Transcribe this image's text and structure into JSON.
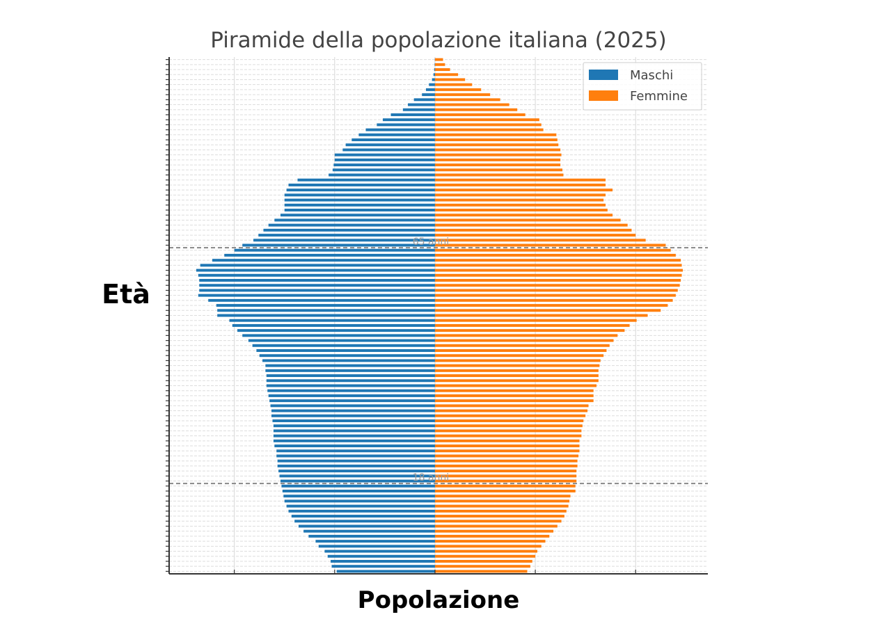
{
  "chart_data": {
    "type": "bar",
    "orientation": "horizontal-population-pyramid",
    "title": "Piramide della popolazione italiana (2025)",
    "xlabel": "Popolazione",
    "ylabel": "Età",
    "x_tick_labels_visible": false,
    "y_tick_labels_visible": false,
    "grid": true,
    "legend_position": "upper-right",
    "xlim": [
      -265000,
      272000
    ],
    "ylim": [
      -0.5,
      102.5
    ],
    "age_ticks": [
      0,
      102
    ],
    "series": [
      {
        "name": "Maschi",
        "color": "#1f77b4",
        "side": "left",
        "values": [
          98000,
          103000,
          104000,
          107000,
          110000,
          116000,
          119000,
          126000,
          131000,
          136000,
          140000,
          143000,
          146000,
          148000,
          150000,
          151000,
          152000,
          153000,
          154000,
          155000,
          156000,
          157000,
          157000,
          158000,
          158000,
          160000,
          161000,
          161000,
          161000,
          161000,
          162000,
          163000,
          163000,
          164000,
          165000,
          166000,
          167000,
          168000,
          168000,
          168000,
          169000,
          169000,
          172000,
          175000,
          178000,
          182000,
          186000,
          192000,
          197000,
          202000,
          205000,
          217000,
          217000,
          218000,
          226000,
          236000,
          235000,
          235000,
          235000,
          236000,
          238000,
          234000,
          222000,
          210000,
          200000,
          192000,
          181000,
          176000,
          171000,
          166000,
          160000,
          154000,
          150000,
          150000,
          150000,
          150000,
          148000,
          146000,
          137000,
          106000,
          102000,
          101000,
          100000,
          100000,
          92000,
          89000,
          83000,
          76000,
          69000,
          58000,
          52000,
          44000,
          32000,
          27000,
          21000,
          13000,
          9000,
          6000,
          3000,
          1500,
          800,
          400,
          200
        ]
      },
      {
        "name": "Femmine",
        "color": "#ff7f0e",
        "side": "right",
        "values": [
          92000,
          95000,
          97000,
          100000,
          102000,
          106000,
          110000,
          114000,
          118000,
          122000,
          126000,
          129000,
          131000,
          133000,
          134000,
          135000,
          140000,
          140000,
          141000,
          141000,
          141000,
          142000,
          142000,
          143000,
          144000,
          144000,
          144000,
          146000,
          146000,
          147000,
          148000,
          150000,
          152000,
          153000,
          158000,
          158000,
          158000,
          161000,
          163000,
          163000,
          163000,
          164000,
          165000,
          168000,
          171000,
          174000,
          178000,
          182000,
          189000,
          194000,
          201000,
          212000,
          225000,
          232000,
          237000,
          240000,
          242000,
          244000,
          245000,
          246000,
          247000,
          246000,
          245000,
          240000,
          235000,
          230000,
          210000,
          200000,
          196000,
          192000,
          185000,
          177000,
          172000,
          170000,
          168000,
          170000,
          177000,
          170000,
          170000,
          128000,
          127000,
          125000,
          125000,
          126000,
          125000,
          123000,
          122000,
          121000,
          108000,
          106000,
          104000,
          90000,
          82000,
          74000,
          65000,
          55000,
          46000,
          37000,
          30000,
          23000,
          15000,
          10000,
          8000
        ]
      }
    ],
    "annotations": [
      {
        "age": 17.5,
        "label": "18 anni"
      },
      {
        "age": 64.5,
        "label": "65 anni"
      }
    ]
  }
}
